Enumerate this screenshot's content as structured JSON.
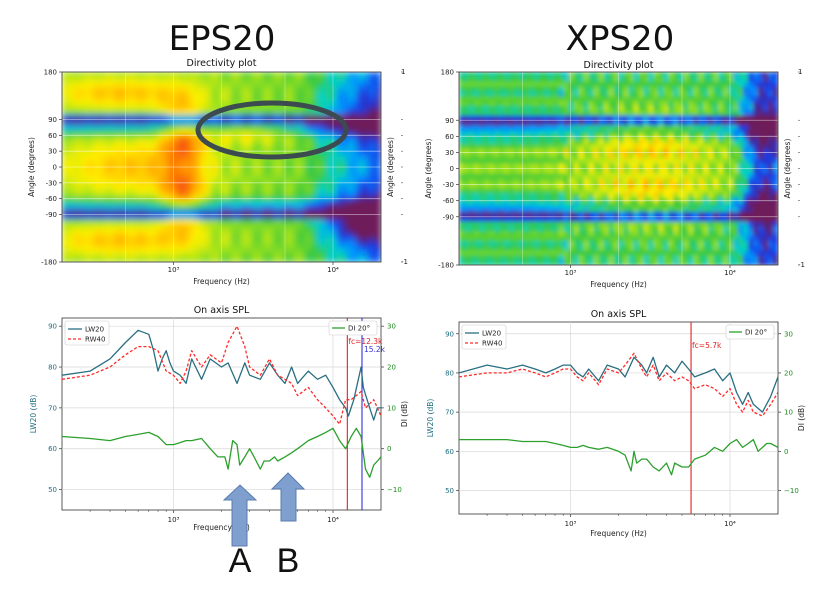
{
  "titles": {
    "left": "EPS20",
    "right": "XPS20"
  },
  "arrow_labels": [
    "A",
    "B"
  ],
  "colors": {
    "lw": "#2a6f82",
    "rw": "#ff2a2a",
    "di": "#2ca02c",
    "fc": "#dd2222",
    "marker2": "#3333dd",
    "ellipse": "#3b4b4f",
    "arrow": "#7f9fce"
  },
  "chart_data": [
    {
      "id": "eps20-directivity",
      "type": "heatmap",
      "title": "Directivity plot",
      "xlabel": "Frequency (Hz)",
      "ylabel": "Angle (degrees)",
      "ylabel_right": "Angle (degrees)",
      "xscale": "log",
      "xlim": [
        200,
        20000
      ],
      "ylim": [
        -180,
        180
      ],
      "x_tick_labels": [
        "10³",
        "10⁴"
      ],
      "x_tick_values": [
        1000,
        10000
      ],
      "y_ticks": [
        180,
        90,
        60,
        30,
        0,
        -30,
        -60,
        -90,
        -180
      ],
      "y_tick_labels": [
        "180",
        "90",
        "60",
        "30",
        "0",
        "-30",
        "-60",
        "-90",
        "-180"
      ],
      "right_tick_labels": [
        "1",
        "-1"
      ],
      "annotation": "ellipse around +60 to +90 degrees, 2k-8k Hz"
    },
    {
      "id": "xps20-directivity",
      "type": "heatmap",
      "title": "Directivity plot",
      "xlabel": "Frequency (Hz)",
      "ylabel": "Angle (degrees)",
      "ylabel_right": "Angle (degrees)",
      "xscale": "log",
      "xlim": [
        200,
        20000
      ],
      "ylim": [
        -180,
        180
      ],
      "x_tick_labels": [
        "10³",
        "10⁴"
      ],
      "x_tick_values": [
        1000,
        10000
      ],
      "y_ticks": [
        180,
        90,
        60,
        30,
        0,
        -30,
        -60,
        -90,
        -180
      ],
      "y_tick_labels": [
        "180",
        "90",
        "60",
        "30",
        "0",
        "-30",
        "-60",
        "-90",
        "-180"
      ],
      "right_tick_labels": [
        "1",
        "-1"
      ]
    },
    {
      "id": "eps20-spl",
      "type": "line",
      "title": "On axis SPL",
      "xlabel": "Frequency (Hz)",
      "ylabel": "LW20 (dB)",
      "ylabel_right": "DI (dB)",
      "xscale": "log",
      "xlim": [
        200,
        20000
      ],
      "ylim": [
        45,
        92
      ],
      "y2lim": [
        -15,
        32
      ],
      "x_tick_labels": [
        "10³",
        "10⁴"
      ],
      "x_tick_values": [
        1000,
        10000
      ],
      "y_ticks": [
        50,
        60,
        70,
        80,
        90
      ],
      "y_tick_labels": [
        "50",
        "60",
        "70",
        "80",
        "90"
      ],
      "y2_ticks": [
        -10,
        0,
        10,
        20,
        30
      ],
      "y2_tick_labels": [
        "−10",
        "0",
        "10",
        "20",
        "30"
      ],
      "legend": [
        "LW20",
        "RW40"
      ],
      "legend2": [
        "DI 20°"
      ],
      "markers": [
        {
          "freq": 12300,
          "label": "fc=12.3k",
          "color": "#dd2222"
        },
        {
          "freq": 15200,
          "label": "15.2k",
          "color": "#3333dd"
        }
      ],
      "series": [
        {
          "name": "LW20",
          "axis": "left",
          "style": "solid",
          "x": [
            200,
            300,
            400,
            500,
            600,
            700,
            750,
            800,
            850,
            900,
            950,
            1000,
            1100,
            1200,
            1300,
            1500,
            1700,
            2000,
            2200,
            2500,
            2800,
            3000,
            3500,
            4000,
            4500,
            5000,
            5500,
            6000,
            7000,
            8000,
            9000,
            10000,
            11000,
            12000,
            12500,
            13500,
            15000,
            15500,
            17000,
            18000,
            19000,
            20000
          ],
          "values": [
            78,
            79,
            82,
            86,
            89,
            88,
            84,
            79,
            82,
            84,
            81,
            79,
            78,
            76,
            82,
            77,
            82,
            80,
            81,
            76,
            81,
            78,
            77,
            81,
            78,
            76,
            80,
            76,
            79,
            77,
            78,
            75,
            72,
            70,
            68,
            72,
            80,
            75,
            70,
            67,
            70,
            70
          ]
        },
        {
          "name": "RW40",
          "axis": "left",
          "style": "dashed",
          "x": [
            200,
            300,
            400,
            500,
            600,
            700,
            800,
            900,
            1000,
            1100,
            1200,
            1300,
            1500,
            1700,
            2000,
            2200,
            2500,
            2800,
            3000,
            3500,
            4000,
            4500,
            5000,
            5500,
            6000,
            7000,
            8000,
            9000,
            10000,
            11000,
            12000,
            13000,
            15000,
            16000,
            18000,
            20000
          ],
          "values": [
            77,
            78,
            80,
            83,
            85,
            85,
            84,
            79,
            78,
            76,
            79,
            84,
            80,
            83,
            81,
            86,
            90,
            85,
            80,
            78,
            82,
            78,
            77,
            76,
            73,
            75,
            72,
            70,
            68,
            66,
            72,
            72,
            74,
            70,
            72,
            68
          ]
        },
        {
          "name": "DI 20°",
          "axis": "right",
          "style": "solid",
          "x": [
            200,
            300,
            400,
            500,
            600,
            700,
            800,
            900,
            1000,
            1100,
            1200,
            1300,
            1500,
            1700,
            1900,
            2100,
            2200,
            2350,
            2500,
            2600,
            2800,
            3000,
            3200,
            3500,
            3700,
            4000,
            4300,
            4500,
            5000,
            5500,
            6000,
            7000,
            8000,
            9000,
            10000,
            11000,
            12000,
            13000,
            14000,
            15000,
            16000,
            17000,
            18000,
            19000,
            20000
          ],
          "values": [
            3,
            2.5,
            2,
            3,
            3.5,
            4,
            3,
            1,
            1,
            1.5,
            2,
            2,
            2.5,
            0,
            -2,
            -2,
            -5,
            2,
            1,
            -4,
            -2,
            0,
            -2,
            -5,
            -3,
            -3,
            -2,
            -3,
            -2,
            -1,
            0,
            2,
            3,
            4,
            5,
            2,
            0,
            3,
            5,
            3,
            -5,
            -7,
            -4,
            -3,
            -2
          ]
        }
      ]
    },
    {
      "id": "xps20-spl",
      "type": "line",
      "title": "On axis SPL",
      "xlabel": "Frequency (Hz)",
      "ylabel": "LW20 (dB)",
      "ylabel_right": "DI (dB)",
      "xscale": "log",
      "xlim": [
        200,
        20000
      ],
      "ylim": [
        44,
        93
      ],
      "y2lim": [
        -16,
        33
      ],
      "x_tick_labels": [
        "10³",
        "10⁴"
      ],
      "x_tick_values": [
        1000,
        10000
      ],
      "y_ticks": [
        50,
        60,
        70,
        80,
        90
      ],
      "y_tick_labels": [
        "50",
        "60",
        "70",
        "80",
        "90"
      ],
      "y2_ticks": [
        -10,
        0,
        10,
        20,
        30
      ],
      "y2_tick_labels": [
        "−10",
        "0",
        "10",
        "20",
        "30"
      ],
      "legend": [
        "LW20",
        "RW40"
      ],
      "legend2": [
        "DI 20°"
      ],
      "markers": [
        {
          "freq": 5700,
          "label": "fc=5.7k",
          "color": "#dd2222"
        }
      ],
      "series": [
        {
          "name": "LW20",
          "axis": "left",
          "style": "solid",
          "x": [
            200,
            300,
            400,
            500,
            600,
            700,
            800,
            900,
            1000,
            1100,
            1200,
            1300,
            1500,
            1700,
            2000,
            2200,
            2500,
            2800,
            3000,
            3300,
            3600,
            4000,
            4500,
            5000,
            5500,
            6000,
            7000,
            8000,
            9000,
            10000,
            11000,
            12000,
            13000,
            14000,
            16000,
            18000,
            20000
          ],
          "values": [
            80,
            82,
            81,
            82,
            81,
            80,
            81,
            82,
            82,
            80,
            79,
            81,
            78,
            82,
            81,
            79,
            84,
            82,
            80,
            84,
            79,
            82,
            80,
            83,
            81,
            79,
            80,
            81,
            78,
            80,
            75,
            72,
            75,
            72,
            70,
            74,
            79
          ]
        },
        {
          "name": "RW40",
          "axis": "left",
          "style": "dashed",
          "x": [
            200,
            300,
            400,
            500,
            600,
            700,
            800,
            900,
            1000,
            1100,
            1200,
            1300,
            1500,
            1700,
            2000,
            2200,
            2500,
            2800,
            3000,
            3300,
            3600,
            4000,
            4500,
            5000,
            5500,
            6000,
            7000,
            8000,
            9000,
            10000,
            11000,
            12000,
            13000,
            14000,
            16000,
            18000,
            20000
          ],
          "values": [
            79,
            80,
            80,
            81,
            80,
            79,
            80,
            81,
            81,
            79,
            78,
            80,
            77,
            81,
            80,
            82,
            85,
            81,
            79,
            82,
            78,
            80,
            78,
            79,
            78,
            76,
            77,
            76,
            74,
            76,
            72,
            70,
            73,
            70,
            69,
            72,
            75
          ]
        },
        {
          "name": "DI 20°",
          "axis": "right",
          "style": "solid",
          "x": [
            200,
            300,
            400,
            500,
            600,
            700,
            800,
            900,
            1000,
            1100,
            1200,
            1300,
            1500,
            1700,
            2000,
            2200,
            2400,
            2500,
            2600,
            2800,
            3000,
            3300,
            3600,
            4000,
            4300,
            4500,
            5000,
            5500,
            6000,
            7000,
            8000,
            9000,
            10000,
            11000,
            12000,
            13000,
            14000,
            15000,
            16000,
            17000,
            18000,
            20000
          ],
          "values": [
            3,
            3,
            3,
            2.5,
            2.5,
            2.5,
            2,
            1.5,
            1,
            1,
            1.5,
            1,
            0.5,
            1,
            0,
            -1,
            -5,
            0,
            -3,
            -2,
            -2,
            -4,
            -5,
            -3,
            -6,
            -3,
            -4,
            -4,
            -2,
            -1,
            1,
            0,
            2,
            3,
            1,
            2,
            3,
            0,
            1,
            2,
            2,
            1
          ]
        }
      ]
    }
  ]
}
